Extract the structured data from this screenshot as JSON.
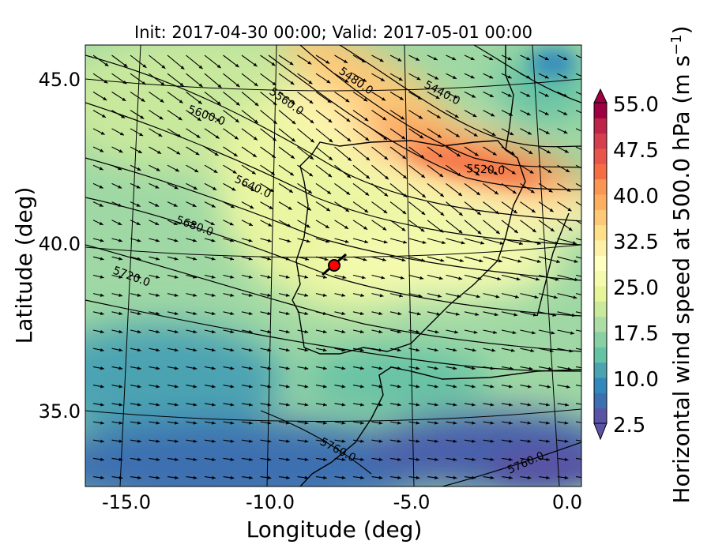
{
  "title": "Init: 2017-04-30 00:00; Valid: 2017-05-01 00:00",
  "x_axis": {
    "label": "Longitude (deg)",
    "ticks": [
      "-15.0",
      "-10.0",
      "-5.0",
      "0.0"
    ],
    "tick_values": [
      -15,
      -10,
      -5,
      0
    ]
  },
  "y_axis": {
    "label": "Latitude (deg)",
    "ticks": [
      "45.0",
      "40.0",
      "35.0"
    ],
    "tick_values": [
      45,
      40,
      35
    ]
  },
  "colorbar": {
    "label": "Horizontal wind speed at 500.0 hPa (m s",
    "label_sup": "−1",
    "label_end": ")",
    "ticks": [
      "55.0",
      "47.5",
      "40.0",
      "32.5",
      "25.0",
      "17.5",
      "10.0",
      "2.5"
    ],
    "tick_values": [
      55,
      47.5,
      40,
      32.5,
      25,
      17.5,
      10,
      2.5
    ],
    "range": [
      2.5,
      55
    ],
    "step": 2.5,
    "extend": "both",
    "colors": [
      "#5954a4",
      "#3d70b1",
      "#3288bd",
      "#4ba3b2",
      "#66c2a5",
      "#88d0a4",
      "#abdda4",
      "#cae99d",
      "#e6f598",
      "#f4faae",
      "#ffffbf",
      "#fff0a8",
      "#fee08b",
      "#fdc877",
      "#fdae61",
      "#f99555",
      "#f46d43",
      "#e8554a",
      "#d53e4f",
      "#be2449",
      "#9e0142"
    ]
  },
  "contour_labels": [
    "5480.0",
    "5440.0",
    "5560.0",
    "5600.0",
    "5520.0",
    "5640.0",
    "5680.0",
    "5720.0",
    "5760.0",
    "5760.0"
  ],
  "marker": {
    "color": "#ff0000",
    "lon": -7.6,
    "lat": 39.6
  }
}
